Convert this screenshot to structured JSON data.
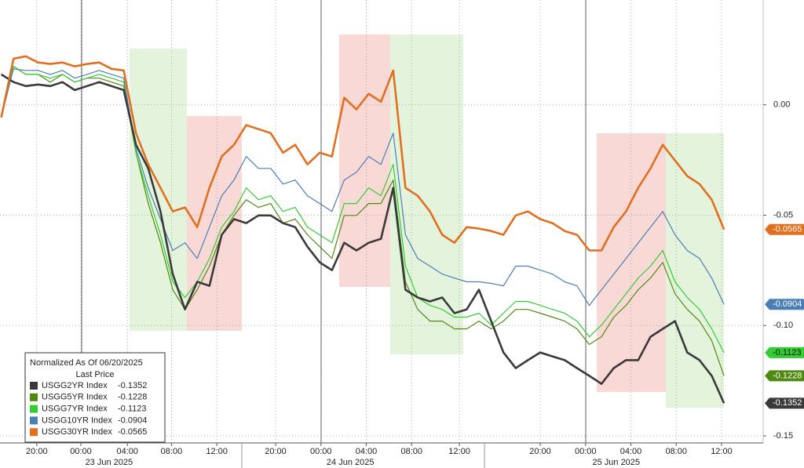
{
  "chart_data": {
    "type": "line",
    "legend_title": "Normalized As Of 06/20/2025",
    "legend_subtitle": "Last Price",
    "x": [
      0,
      1,
      2,
      3,
      4,
      5,
      6,
      7,
      8,
      9,
      10,
      11,
      12,
      13,
      14,
      15,
      16,
      17,
      18,
      19,
      20,
      21,
      22,
      23,
      24,
      25,
      26,
      27,
      28,
      29,
      30,
      31,
      32,
      33,
      34,
      35,
      36,
      37,
      38,
      39,
      40,
      41,
      42,
      43,
      44,
      45,
      46,
      47,
      48,
      49,
      50,
      51,
      52,
      53,
      54,
      55,
      56,
      57,
      58,
      59
    ],
    "xlim": [
      -0.1,
      62.2
    ],
    "xticks": [
      {
        "value": 2.9,
        "label": "20:00"
      },
      {
        "value": 6.5,
        "label": "00:00"
      },
      {
        "value": 10.3,
        "label": "04:00"
      },
      {
        "value": 13.9,
        "label": "08:00"
      },
      {
        "value": 17.6,
        "label": "12:00"
      },
      {
        "value": 22.4,
        "label": "20:00"
      },
      {
        "value": 26.1,
        "label": "00:00"
      },
      {
        "value": 29.8,
        "label": "04:00"
      },
      {
        "value": 33.5,
        "label": "08:00"
      },
      {
        "value": 37.4,
        "label": "12:00"
      },
      {
        "value": 44.0,
        "label": "20:00"
      },
      {
        "value": 47.7,
        "label": "00:00"
      },
      {
        "value": 51.4,
        "label": "04:00"
      },
      {
        "value": 55.1,
        "label": "08:00"
      },
      {
        "value": 58.8,
        "label": "12:00"
      }
    ],
    "date_ticks": [
      {
        "value": 8.8,
        "label": "23 Jun 2025"
      },
      {
        "value": 28.5,
        "label": "24 Jun 2025"
      },
      {
        "value": 50.2,
        "label": "25 Jun 2025"
      }
    ],
    "ylim": [
      -0.1532,
      0.0475
    ],
    "yticks": [
      {
        "value": 0,
        "label": "0.00"
      },
      -0.05,
      {
        "value": -0.1,
        "label": "-0.10"
      },
      {
        "value": -0.15,
        "label": "-0.15"
      }
    ],
    "grid": true,
    "series": [
      {
        "name": "USGG2YR Index",
        "color": "#3a3a3a",
        "width": 2.6,
        "last_price": -0.1352,
        "values": [
          0.0138,
          0.0103,
          0.0085,
          0.0092,
          0.0085,
          0.0103,
          0.0067,
          0.0085,
          0.0103,
          0.0085,
          0.0067,
          -0.0181,
          -0.0288,
          -0.0483,
          -0.0767,
          -0.0927,
          -0.0802,
          -0.082,
          -0.0589,
          -0.0518,
          -0.0536,
          -0.0501,
          -0.0501,
          -0.0536,
          -0.0554,
          -0.0643,
          -0.0714,
          -0.0749,
          -0.0625,
          -0.066,
          -0.0625,
          -0.0607,
          -0.0376,
          -0.0838,
          -0.0873,
          -0.0891,
          -0.0873,
          -0.0944,
          -0.0927,
          -0.0838,
          -0.098,
          -0.1122,
          -0.1193,
          -0.1157,
          -0.1122,
          -0.114,
          -0.1157,
          -0.1193,
          -0.1228,
          -0.1264,
          -0.1193,
          -0.1157,
          -0.1157,
          -0.1051,
          -0.1015,
          -0.098,
          -0.1122,
          -0.1157,
          -0.1228,
          -0.1352
        ]
      },
      {
        "name": "USGG5YR Index",
        "color": "#4f8a10",
        "width": 1.2,
        "last_price": -0.1228,
        "values": [
          -0.0057,
          0.0174,
          0.0138,
          0.0138,
          0.0103,
          0.0138,
          0.0103,
          0.0121,
          0.0121,
          0.0103,
          0.0085,
          -0.0217,
          -0.0447,
          -0.0625,
          -0.0838,
          -0.0927,
          -0.0838,
          -0.0731,
          -0.0589,
          -0.0501,
          -0.043,
          -0.0465,
          -0.0447,
          -0.0536,
          -0.0518,
          -0.0589,
          -0.0643,
          -0.0696,
          -0.0501,
          -0.0501,
          -0.0447,
          -0.0447,
          -0.0341,
          -0.0802,
          -0.0927,
          -0.098,
          -0.098,
          -0.1015,
          -0.1015,
          -0.098,
          -0.1015,
          -0.098,
          -0.0927,
          -0.0927,
          -0.0944,
          -0.0962,
          -0.098,
          -0.1015,
          -0.1086,
          -0.1051,
          -0.0962,
          -0.0909,
          -0.0838,
          -0.0785,
          -0.0714,
          -0.0856,
          -0.0927,
          -0.098,
          -0.1069,
          -0.1228
        ]
      },
      {
        "name": "USGG7YR Index",
        "color": "#33cc33",
        "width": 1.2,
        "last_price": -0.1123,
        "values": [
          -0.0057,
          0.0174,
          0.0138,
          0.0138,
          0.0121,
          0.0138,
          0.0103,
          0.0121,
          0.0138,
          0.0121,
          0.0103,
          -0.0217,
          -0.0412,
          -0.0589,
          -0.0802,
          -0.0873,
          -0.0802,
          -0.0696,
          -0.0554,
          -0.0483,
          -0.0376,
          -0.043,
          -0.0412,
          -0.0483,
          -0.0465,
          -0.0554,
          -0.0589,
          -0.0625,
          -0.0447,
          -0.0447,
          -0.0376,
          -0.0412,
          -0.027,
          -0.0731,
          -0.0873,
          -0.0909,
          -0.0927,
          -0.0962,
          -0.0962,
          -0.0944,
          -0.0998,
          -0.0944,
          -0.0891,
          -0.0891,
          -0.0909,
          -0.0927,
          -0.0944,
          -0.098,
          -0.1051,
          -0.0998,
          -0.0927,
          -0.0856,
          -0.0785,
          -0.0731,
          -0.066,
          -0.0802,
          -0.0873,
          -0.0927,
          -0.1015,
          -0.1123
        ]
      },
      {
        "name": "USGG10YR Index",
        "color": "#4a7fb5",
        "width": 1.2,
        "last_price": -0.0904,
        "values": [
          -0.0057,
          0.0163,
          0.0156,
          0.0156,
          0.0138,
          0.0156,
          0.0121,
          0.0138,
          0.0156,
          0.0138,
          0.0121,
          -0.0199,
          -0.0376,
          -0.0518,
          -0.066,
          -0.0625,
          -0.0696,
          -0.0554,
          -0.0412,
          -0.0341,
          -0.0234,
          -0.0288,
          -0.0288,
          -0.0359,
          -0.0341,
          -0.0412,
          -0.0447,
          -0.0483,
          -0.0341,
          -0.0305,
          -0.0234,
          -0.027,
          -0.0128,
          -0.0589,
          -0.0696,
          -0.0731,
          -0.0767,
          -0.0785,
          -0.0802,
          -0.0802,
          -0.0809,
          -0.082,
          -0.0731,
          -0.0731,
          -0.0749,
          -0.0767,
          -0.0802,
          -0.082,
          -0.0909,
          -0.0838,
          -0.0767,
          -0.0696,
          -0.0625,
          -0.0554,
          -0.0483,
          -0.0589,
          -0.066,
          -0.0696,
          -0.0785,
          -0.0904
        ]
      },
      {
        "name": "USGG30YR Index",
        "color": "#e07020",
        "width": 2.6,
        "last_price": -0.0565,
        "values": [
          -0.0057,
          0.0209,
          0.022,
          0.0192,
          0.0185,
          0.0192,
          0.0174,
          0.0185,
          0.0192,
          0.0163,
          0.0156,
          -0.0128,
          -0.027,
          -0.0376,
          -0.0483,
          -0.0465,
          -0.0554,
          -0.0376,
          -0.0234,
          -0.0181,
          -0.0092,
          -0.011,
          -0.0128,
          -0.0217,
          -0.0181,
          -0.027,
          -0.0217,
          -0.0234,
          0.0032,
          -0.0021,
          0.005,
          0.0014,
          0.0156,
          -0.0376,
          -0.0412,
          -0.0483,
          -0.0589,
          -0.0625,
          -0.0554,
          -0.0561,
          -0.0572,
          -0.0589,
          -0.0501,
          -0.0483,
          -0.0518,
          -0.0536,
          -0.0572,
          -0.0589,
          -0.066,
          -0.066,
          -0.0554,
          -0.0483,
          -0.0376,
          -0.0288,
          -0.0181,
          -0.0252,
          -0.0323,
          -0.0359,
          -0.043,
          -0.0565
        ]
      }
    ]
  }
}
